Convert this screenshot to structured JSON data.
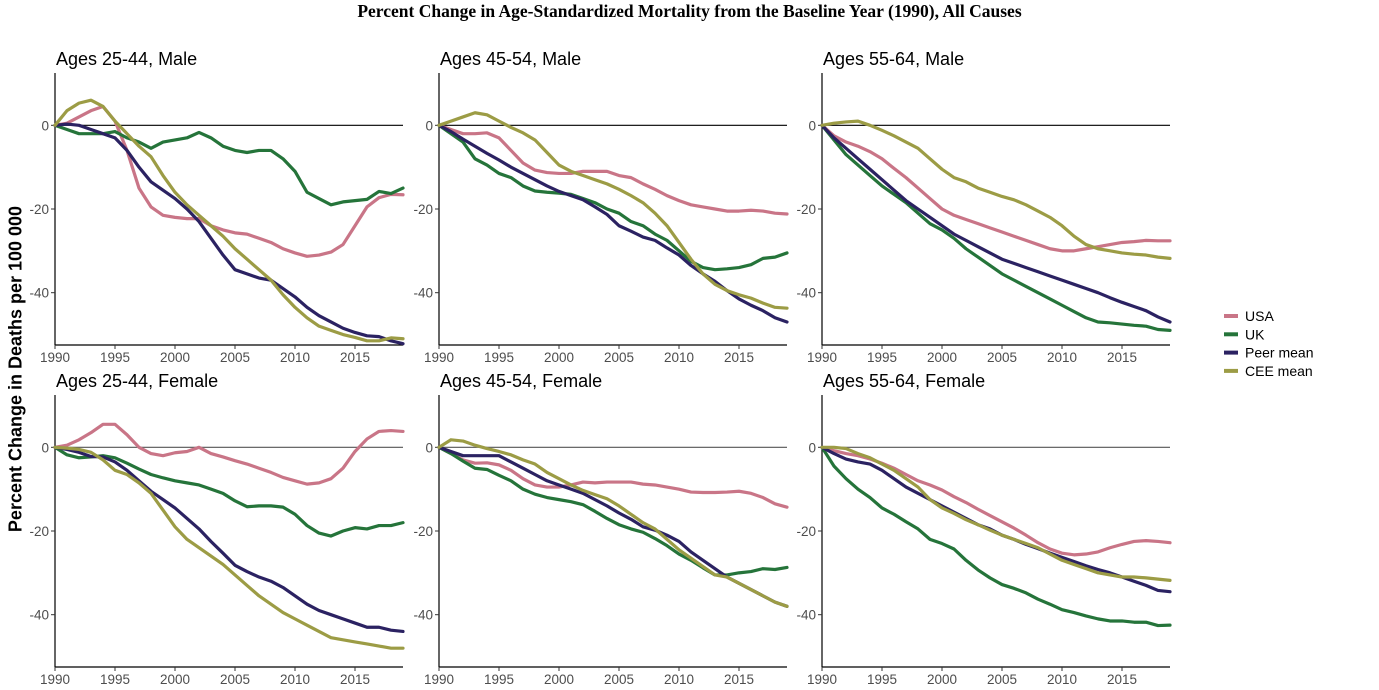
{
  "chart_data": {
    "type": "line",
    "title": "Percent Change in Age-Standardized Mortality from the Baseline Year (1990), All Causes",
    "ylabel": "Percent Change in  Deaths per 100 000",
    "xlabel": "",
    "x": [
      1990,
      1991,
      1992,
      1993,
      1994,
      1995,
      1996,
      1997,
      1998,
      1999,
      2000,
      2001,
      2002,
      2003,
      2004,
      2005,
      2006,
      2007,
      2008,
      2009,
      2010,
      2011,
      2012,
      2013,
      2014,
      2015,
      2016,
      2017,
      2018,
      2019
    ],
    "xlim": [
      1990,
      2019
    ],
    "ylim": [
      -52.5,
      12.5
    ],
    "x_ticks": [
      "1990",
      "1995",
      "2000",
      "2005",
      "2010",
      "2015"
    ],
    "x_tick_values": [
      1990,
      1995,
      2000,
      2005,
      2010,
      2015
    ],
    "y_ticks": [
      "0",
      "-20",
      "-40"
    ],
    "y_tick_values": [
      0,
      -20,
      -40
    ],
    "grid": false,
    "reference_line": 0,
    "legend": {
      "placement": "right",
      "entries": [
        {
          "name": "USA",
          "color": "#c97587"
        },
        {
          "name": "UK",
          "color": "#25743a"
        },
        {
          "name": "Peer mean",
          "color": "#2b2262"
        },
        {
          "name": "CEE mean",
          "color": "#9c9c45"
        }
      ]
    },
    "panels": [
      {
        "title": "Ages 25-44, Male",
        "series": [
          {
            "name": "USA",
            "values": [
              0,
              0.5,
              2,
              3.5,
              4.5,
              1,
              -6,
              -15,
              -19.5,
              -21.5,
              -22,
              -22.3,
              -22.3,
              -24,
              -25,
              -25.7,
              -26,
              -27,
              -28,
              -29.5,
              -30.5,
              -31.3,
              -31,
              -30.3,
              -28.5,
              -24,
              -19.5,
              -17.3,
              -16.5,
              -16.6
            ]
          },
          {
            "name": "UK",
            "values": [
              0,
              -1,
              -2,
              -2,
              -2,
              -1.5,
              -3,
              -4,
              -5.5,
              -4,
              -3.5,
              -3,
              -1.7,
              -3,
              -5,
              -6,
              -6.5,
              -6,
              -6,
              -8,
              -11,
              -16,
              -17.5,
              -19,
              -18.3,
              -18,
              -17.7,
              -15.8,
              -16.3,
              -15
            ]
          },
          {
            "name": "Peer mean",
            "values": [
              0,
              0.3,
              0,
              -1,
              -2,
              -3,
              -6,
              -10,
              -13.5,
              -15.5,
              -17.5,
              -20,
              -23,
              -27,
              -31,
              -34.5,
              -35.5,
              -36.5,
              -37,
              -39,
              -41,
              -43.5,
              -45.5,
              -47,
              -48.5,
              -49.5,
              -50.3,
              -50.5,
              -51.5,
              -52.2
            ]
          },
          {
            "name": "CEE mean",
            "values": [
              0,
              3.5,
              5.3,
              6,
              4.5,
              1,
              -2,
              -5,
              -7.5,
              -12,
              -16,
              -19,
              -21.5,
              -24,
              -26.5,
              -29.5,
              -32,
              -34.5,
              -37,
              -40.5,
              -43.5,
              -46,
              -48,
              -49,
              -50,
              -50.7,
              -51.5,
              -51.5,
              -50.8,
              -51
            ]
          }
        ]
      },
      {
        "title": "Ages 45-54, Male",
        "series": [
          {
            "name": "USA",
            "values": [
              0,
              -1,
              -2,
              -2,
              -1.8,
              -3,
              -6,
              -9,
              -10.7,
              -11.3,
              -11.5,
              -11.5,
              -11,
              -11,
              -11,
              -12,
              -12.5,
              -14,
              -15.3,
              -16.8,
              -18,
              -19,
              -19.5,
              -20,
              -20.5,
              -20.5,
              -20.3,
              -20.5,
              -21,
              -21.2
            ]
          },
          {
            "name": "UK",
            "values": [
              0,
              -2,
              -4,
              -8,
              -9.5,
              -11.5,
              -12.5,
              -14.5,
              -15.7,
              -16,
              -16.2,
              -16.5,
              -17.5,
              -18.5,
              -20,
              -21,
              -23,
              -24,
              -26,
              -27.5,
              -30,
              -32.5,
              -34,
              -34.5,
              -34.3,
              -34,
              -33.3,
              -31.8,
              -31.5,
              -30.5
            ]
          },
          {
            "name": "Peer mean",
            "values": [
              0,
              -1.5,
              -3.3,
              -5,
              -6.7,
              -8.3,
              -10,
              -11.5,
              -13,
              -14.5,
              -15.8,
              -16.8,
              -17.8,
              -19.5,
              -21.3,
              -24,
              -25.3,
              -26.7,
              -27.5,
              -29.3,
              -31,
              -33.5,
              -35.5,
              -37.3,
              -39.5,
              -41.5,
              -43,
              -44.3,
              -46,
              -47
            ]
          },
          {
            "name": "CEE mean",
            "values": [
              0,
              1,
              2,
              3,
              2.5,
              1,
              -0.5,
              -1.8,
              -3.5,
              -6.5,
              -9.5,
              -11,
              -12,
              -13,
              -14,
              -15.3,
              -16.8,
              -18.5,
              -21,
              -24,
              -28,
              -32,
              -35.5,
              -38,
              -39.5,
              -40.5,
              -41.3,
              -42.5,
              -43.5,
              -43.7
            ]
          }
        ]
      },
      {
        "title": "Ages 55-64, Male",
        "series": [
          {
            "name": "USA",
            "values": [
              0,
              -2.5,
              -4,
              -5,
              -6.3,
              -8,
              -10.3,
              -12.5,
              -15,
              -17.5,
              -20,
              -21.5,
              -22.5,
              -23.5,
              -24.5,
              -25.5,
              -26.5,
              -27.5,
              -28.5,
              -29.5,
              -30,
              -30,
              -29.5,
              -29,
              -28.5,
              -28,
              -27.8,
              -27.5,
              -27.6,
              -27.6
            ]
          },
          {
            "name": "UK",
            "values": [
              0,
              -3.5,
              -7,
              -9.5,
              -12,
              -14.5,
              -16.5,
              -18.5,
              -21,
              -23.5,
              -25,
              -27,
              -29.5,
              -31.5,
              -33.5,
              -35.5,
              -37,
              -38.5,
              -40,
              -41.5,
              -43,
              -44.5,
              -46,
              -47,
              -47.2,
              -47.5,
              -47.8,
              -48,
              -48.8,
              -49
            ]
          },
          {
            "name": "Peer mean",
            "values": [
              0,
              -3,
              -5.5,
              -8,
              -10.5,
              -13,
              -15.5,
              -18,
              -20,
              -22,
              -24,
              -26,
              -27.5,
              -29,
              -30.5,
              -32,
              -33,
              -34,
              -35,
              -36,
              -37,
              -38,
              -39,
              -40,
              -41.2,
              -42.3,
              -43.3,
              -44.3,
              -45.8,
              -47
            ]
          },
          {
            "name": "CEE mean",
            "values": [
              0,
              0.5,
              0.8,
              1,
              0,
              -1.2,
              -2.5,
              -4,
              -5.5,
              -8,
              -10.5,
              -12.5,
              -13.5,
              -15,
              -16,
              -17,
              -17.8,
              -19,
              -20.5,
              -22,
              -24,
              -26.5,
              -28.5,
              -29.5,
              -30,
              -30.5,
              -30.8,
              -31,
              -31.5,
              -31.8
            ]
          }
        ]
      },
      {
        "title": "Ages 25-44, Female",
        "series": [
          {
            "name": "USA",
            "values": [
              0,
              0.5,
              1.8,
              3.5,
              5.5,
              5.5,
              3,
              0,
              -1.5,
              -2,
              -1.3,
              -1,
              0,
              -1.5,
              -2.3,
              -3.2,
              -4,
              -5,
              -6,
              -7.2,
              -8,
              -8.8,
              -8.5,
              -7.5,
              -5,
              -1,
              2,
              3.8,
              4,
              3.8
            ]
          },
          {
            "name": "UK",
            "values": [
              0,
              -1.8,
              -2.5,
              -2.3,
              -2,
              -2.5,
              -3.8,
              -5.2,
              -6.5,
              -7.3,
              -8,
              -8.5,
              -9,
              -10,
              -11,
              -12.8,
              -14.2,
              -14,
              -14,
              -14.3,
              -16,
              -18.7,
              -20.5,
              -21.2,
              -20,
              -19.2,
              -19.5,
              -18.7,
              -18.7,
              -18
            ]
          },
          {
            "name": "Peer mean",
            "values": [
              0,
              -0.5,
              -1.2,
              -2.2,
              -2.3,
              -3.5,
              -5.5,
              -8,
              -10.5,
              -12.5,
              -14.5,
              -17,
              -19.5,
              -22.5,
              -25.3,
              -28.2,
              -29.7,
              -31,
              -32,
              -33.5,
              -35.5,
              -37.5,
              -39,
              -40,
              -41,
              -42,
              -43,
              -43,
              -43.7,
              -44
            ]
          },
          {
            "name": "CEE mean",
            "values": [
              0,
              -0.2,
              -0.5,
              -1.2,
              -3,
              -5.5,
              -6.5,
              -8.5,
              -11,
              -15,
              -19,
              -22,
              -24,
              -26,
              -28,
              -30.5,
              -33,
              -35.5,
              -37.5,
              -39.5,
              -41,
              -42.5,
              -44,
              -45.5,
              -46,
              -46.5,
              -47,
              -47.5,
              -48,
              -48
            ]
          }
        ]
      },
      {
        "title": "Ages 45-54, Female",
        "series": [
          {
            "name": "USA",
            "values": [
              0,
              -1.5,
              -3,
              -3.8,
              -3.7,
              -4.2,
              -5.5,
              -7.5,
              -9,
              -9.5,
              -9.5,
              -9,
              -8.3,
              -8.5,
              -8.3,
              -8.3,
              -8.3,
              -8.8,
              -9,
              -9.5,
              -10,
              -10.7,
              -10.8,
              -10.8,
              -10.7,
              -10.5,
              -11,
              -12,
              -13.5,
              -14.3
            ]
          },
          {
            "name": "UK",
            "values": [
              0,
              -1.5,
              -3.3,
              -5,
              -5.3,
              -6.7,
              -8,
              -10,
              -11.2,
              -12,
              -12.5,
              -13,
              -13.7,
              -15.3,
              -17,
              -18.5,
              -19.5,
              -20.3,
              -21.8,
              -23.5,
              -25.5,
              -27,
              -28.8,
              -30.5,
              -30.5,
              -30,
              -29.7,
              -29,
              -29.2,
              -28.7
            ]
          },
          {
            "name": "Peer mean",
            "values": [
              0,
              -1,
              -2,
              -2,
              -2,
              -2,
              -3.5,
              -5,
              -6.5,
              -8,
              -9,
              -10,
              -11,
              -12.5,
              -14,
              -15.7,
              -17.2,
              -19,
              -19.8,
              -21,
              -22.5,
              -25,
              -27,
              -29,
              -31,
              -32.5,
              -34,
              -35.5,
              -37,
              -38
            ]
          },
          {
            "name": "CEE mean",
            "values": [
              0,
              1.8,
              1.5,
              0.5,
              -0.3,
              -1,
              -1.8,
              -3,
              -4,
              -6,
              -7.5,
              -9,
              -10.3,
              -11.3,
              -12.3,
              -14,
              -16,
              -18,
              -19.5,
              -22,
              -24.5,
              -26.5,
              -28.5,
              -30.5,
              -31,
              -32.5,
              -34,
              -35.5,
              -37,
              -38
            ]
          }
        ]
      },
      {
        "title": "Ages 55-64, Female",
        "series": [
          {
            "name": "USA",
            "values": [
              0,
              -0.8,
              -1.5,
              -2,
              -2.8,
              -3.8,
              -5,
              -6.5,
              -8,
              -9,
              -10.2,
              -11.8,
              -13.2,
              -14.8,
              -16.3,
              -17.8,
              -19.3,
              -21,
              -22.8,
              -24.3,
              -25.3,
              -25.7,
              -25.5,
              -25,
              -24,
              -23.2,
              -22.5,
              -22.3,
              -22.5,
              -22.8
            ]
          },
          {
            "name": "UK",
            "values": [
              0,
              -4.5,
              -7.5,
              -10,
              -12,
              -14.5,
              -16,
              -17.8,
              -19.5,
              -22,
              -23,
              -24.3,
              -27,
              -29.3,
              -31.2,
              -32.8,
              -33.7,
              -34.8,
              -36.3,
              -37.5,
              -38.8,
              -39.5,
              -40.3,
              -41,
              -41.5,
              -41.5,
              -41.8,
              -41.8,
              -42.6,
              -42.5
            ]
          },
          {
            "name": "Peer mean",
            "values": [
              0,
              -1.5,
              -2.8,
              -3.5,
              -4,
              -5.5,
              -7.5,
              -9.5,
              -11,
              -12.5,
              -14,
              -15.5,
              -17,
              -18.5,
              -19.5,
              -21,
              -22,
              -23.2,
              -24.2,
              -25.3,
              -26.3,
              -27.3,
              -28.3,
              -29.2,
              -30,
              -31,
              -32,
              -33,
              -34.2,
              -34.5
            ]
          },
          {
            "name": "CEE mean",
            "values": [
              0,
              0,
              -0.3,
              -1.5,
              -2.5,
              -4,
              -5.5,
              -7.5,
              -9.5,
              -12.5,
              -14.5,
              -15.8,
              -17.3,
              -18.5,
              -19.8,
              -21,
              -22,
              -23,
              -24,
              -25.5,
              -27,
              -28,
              -29,
              -30,
              -30.5,
              -31,
              -31,
              -31.2,
              -31.5,
              -31.8
            ]
          }
        ]
      }
    ]
  }
}
